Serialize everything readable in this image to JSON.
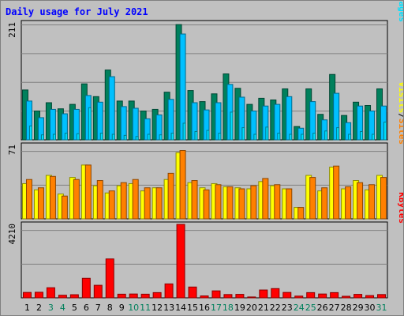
{
  "title": "Daily usage for July 2021",
  "colors": {
    "hits": "#00805c",
    "files": "#00c0ff",
    "pages": "#00e0ff",
    "sites": "#ff8000",
    "visits": "#ffff00",
    "kbytes": "#ff0000",
    "weekend_day": "#00805c",
    "weekday": "#000000",
    "panel_bg": "#c0c0c0",
    "grid": "#808080"
  },
  "chart_data": [
    {
      "type": "bar",
      "name": "hits-files-pages",
      "categories": [
        "1",
        "2",
        "3",
        "4",
        "5",
        "6",
        "7",
        "8",
        "9",
        "10",
        "11",
        "12",
        "13",
        "14",
        "15",
        "16",
        "17",
        "18",
        "19",
        "20",
        "21",
        "22",
        "23",
        "24",
        "25",
        "26",
        "27",
        "28",
        "29",
        "30",
        "31"
      ],
      "ymax_label": "211",
      "ylim": [
        0,
        211
      ],
      "legend": [
        "Pages",
        "/",
        "Files",
        "/",
        "Hits"
      ],
      "series": [
        {
          "name": "Hits",
          "values": [
            90,
            52,
            67,
            56,
            64,
            101,
            78,
            126,
            70,
            70,
            52,
            55,
            86,
            208,
            89,
            69,
            83,
            119,
            93,
            64,
            75,
            72,
            92,
            24,
            92,
            46,
            118,
            44,
            68,
            62,
            92
          ]
        },
        {
          "name": "Files",
          "values": [
            70,
            40,
            55,
            47,
            55,
            80,
            68,
            114,
            60,
            57,
            38,
            45,
            73,
            191,
            67,
            54,
            67,
            100,
            77,
            52,
            61,
            64,
            78,
            21,
            69,
            36,
            84,
            31,
            61,
            52,
            61
          ]
        },
        {
          "name": "Pages",
          "values": [
            25,
            9,
            10,
            12,
            11,
            58,
            12,
            10,
            8,
            6,
            10,
            9,
            12,
            30,
            15,
            17,
            12,
            50,
            22,
            10,
            23,
            12,
            10,
            10,
            12,
            16,
            22,
            10,
            15,
            10,
            32
          ]
        }
      ]
    },
    {
      "type": "bar",
      "name": "sites-visits",
      "categories": [
        "1",
        "2",
        "3",
        "4",
        "5",
        "6",
        "7",
        "8",
        "9",
        "10",
        "11",
        "12",
        "13",
        "14",
        "15",
        "16",
        "17",
        "18",
        "19",
        "20",
        "21",
        "22",
        "23",
        "24",
        "25",
        "26",
        "27",
        "28",
        "29",
        "30",
        "31"
      ],
      "ymax_label": "71",
      "ylim": [
        0,
        71
      ],
      "legend": [
        "Sites",
        "/",
        "Visits"
      ],
      "series": [
        {
          "name": "Visits",
          "values": [
            34,
            28,
            42,
            24,
            40,
            52,
            32,
            25,
            32,
            34,
            27,
            30,
            38,
            64,
            35,
            30,
            34,
            31,
            30,
            29,
            36,
            32,
            29,
            11,
            42,
            27,
            50,
            29,
            37,
            28,
            42
          ]
        },
        {
          "name": "Sites",
          "values": [
            38,
            30,
            41,
            22,
            38,
            52,
            37,
            27,
            35,
            38,
            30,
            30,
            44,
            66,
            37,
            28,
            33,
            31,
            29,
            32,
            39,
            33,
            29,
            11,
            40,
            30,
            51,
            31,
            35,
            33,
            40
          ]
        }
      ]
    },
    {
      "type": "bar",
      "name": "kbytes",
      "categories": [
        "1",
        "2",
        "3",
        "4",
        "5",
        "6",
        "7",
        "8",
        "9",
        "10",
        "11",
        "12",
        "13",
        "14",
        "15",
        "16",
        "17",
        "18",
        "19",
        "20",
        "21",
        "22",
        "23",
        "24",
        "25",
        "26",
        "27",
        "28",
        "29",
        "30",
        "31"
      ],
      "ymax_label": "4210",
      "ylim": [
        0,
        4210
      ],
      "legend": [
        "KBytes"
      ],
      "series": [
        {
          "name": "KBytes",
          "values": [
            310,
            320,
            580,
            150,
            180,
            1120,
            720,
            2230,
            210,
            220,
            210,
            300,
            800,
            4210,
            620,
            110,
            400,
            190,
            200,
            50,
            450,
            530,
            310,
            100,
            300,
            220,
            300,
            90,
            200,
            130,
            190
          ]
        }
      ]
    }
  ],
  "weekend_days": [
    "3",
    "4",
    "10",
    "11",
    "17",
    "18",
    "24",
    "25",
    "31"
  ]
}
